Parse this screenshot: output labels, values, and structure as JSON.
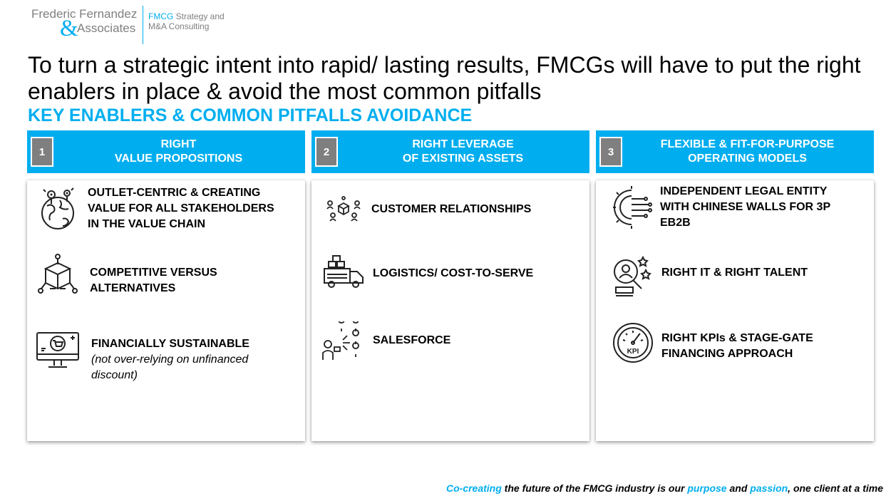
{
  "logo": {
    "name_line1": "Frederic Fernandez",
    "ampersand": "&",
    "name_line2": "Associates",
    "tag_strong": "FMCG",
    "tag_line1_rest": " Strategy and",
    "tag_line2": "M&A Consulting"
  },
  "headline": "To turn a strategic intent into rapid/ lasting results, FMCGs will have to put the right enablers in place & avoid the most common pitfalls",
  "subhead": "KEY ENABLERS & COMMON PITFALLS AVOIDANCE",
  "columns": [
    {
      "number": "1",
      "title_line1": "RIGHT",
      "title_line2": "VALUE PROPOSITIONS",
      "items": [
        {
          "icon": "globe-network-icon",
          "lines": [
            "OUTLET-CENTRIC & CREATING",
            "VALUE FOR ALL STAKEHOLDERS",
            "IN THE VALUE CHAIN"
          ]
        },
        {
          "icon": "box-network-icon",
          "lines": [
            "COMPETITIVE VERSUS",
            "ALTERNATIVES"
          ]
        },
        {
          "icon": "ecommerce-monitor-icon",
          "lines": [
            "FINANCIALLY SUSTAINABLE"
          ],
          "notes": [
            "(not over-relying on unfinanced",
            "discount)"
          ]
        }
      ]
    },
    {
      "number": "2",
      "title_line1": "RIGHT LEVERAGE",
      "title_line2": "OF EXISTING ASSETS",
      "items": [
        {
          "icon": "customer-network-icon",
          "lines": [
            "CUSTOMER RELATIONSHIPS"
          ]
        },
        {
          "icon": "delivery-truck-icon",
          "lines": [
            "LOGISTICS/ COST-TO-SERVE"
          ]
        },
        {
          "icon": "salesforce-people-icon",
          "lines": [
            "SALESFORCE"
          ]
        }
      ]
    },
    {
      "number": "3",
      "title_line1": "FLEXIBLE & FIT-FOR-PURPOSE",
      "title_line2": "OPERATING MODELS",
      "items": [
        {
          "icon": "gear-circuit-icon",
          "lines": [
            "INDEPENDENT LEGAL ENTITY",
            "WITH CHINESE WALLS FOR 3P",
            "EB2B"
          ]
        },
        {
          "icon": "talent-search-icon",
          "lines": [
            "RIGHT IT & RIGHT TALENT"
          ]
        },
        {
          "icon": "kpi-gauge-icon",
          "lines": [
            "RIGHT KPIs & STAGE-GATE",
            "FINANCING APPROACH"
          ]
        }
      ]
    }
  ],
  "footer": {
    "part1": "Co-creating",
    "part2": " the future of the FMCG industry is our ",
    "part3": "purpose",
    "part4": " and ",
    "part5": "passion",
    "part6": ", one client at a time"
  },
  "colors": {
    "accent": "#00aeef",
    "grey": "#7f7f7f"
  }
}
